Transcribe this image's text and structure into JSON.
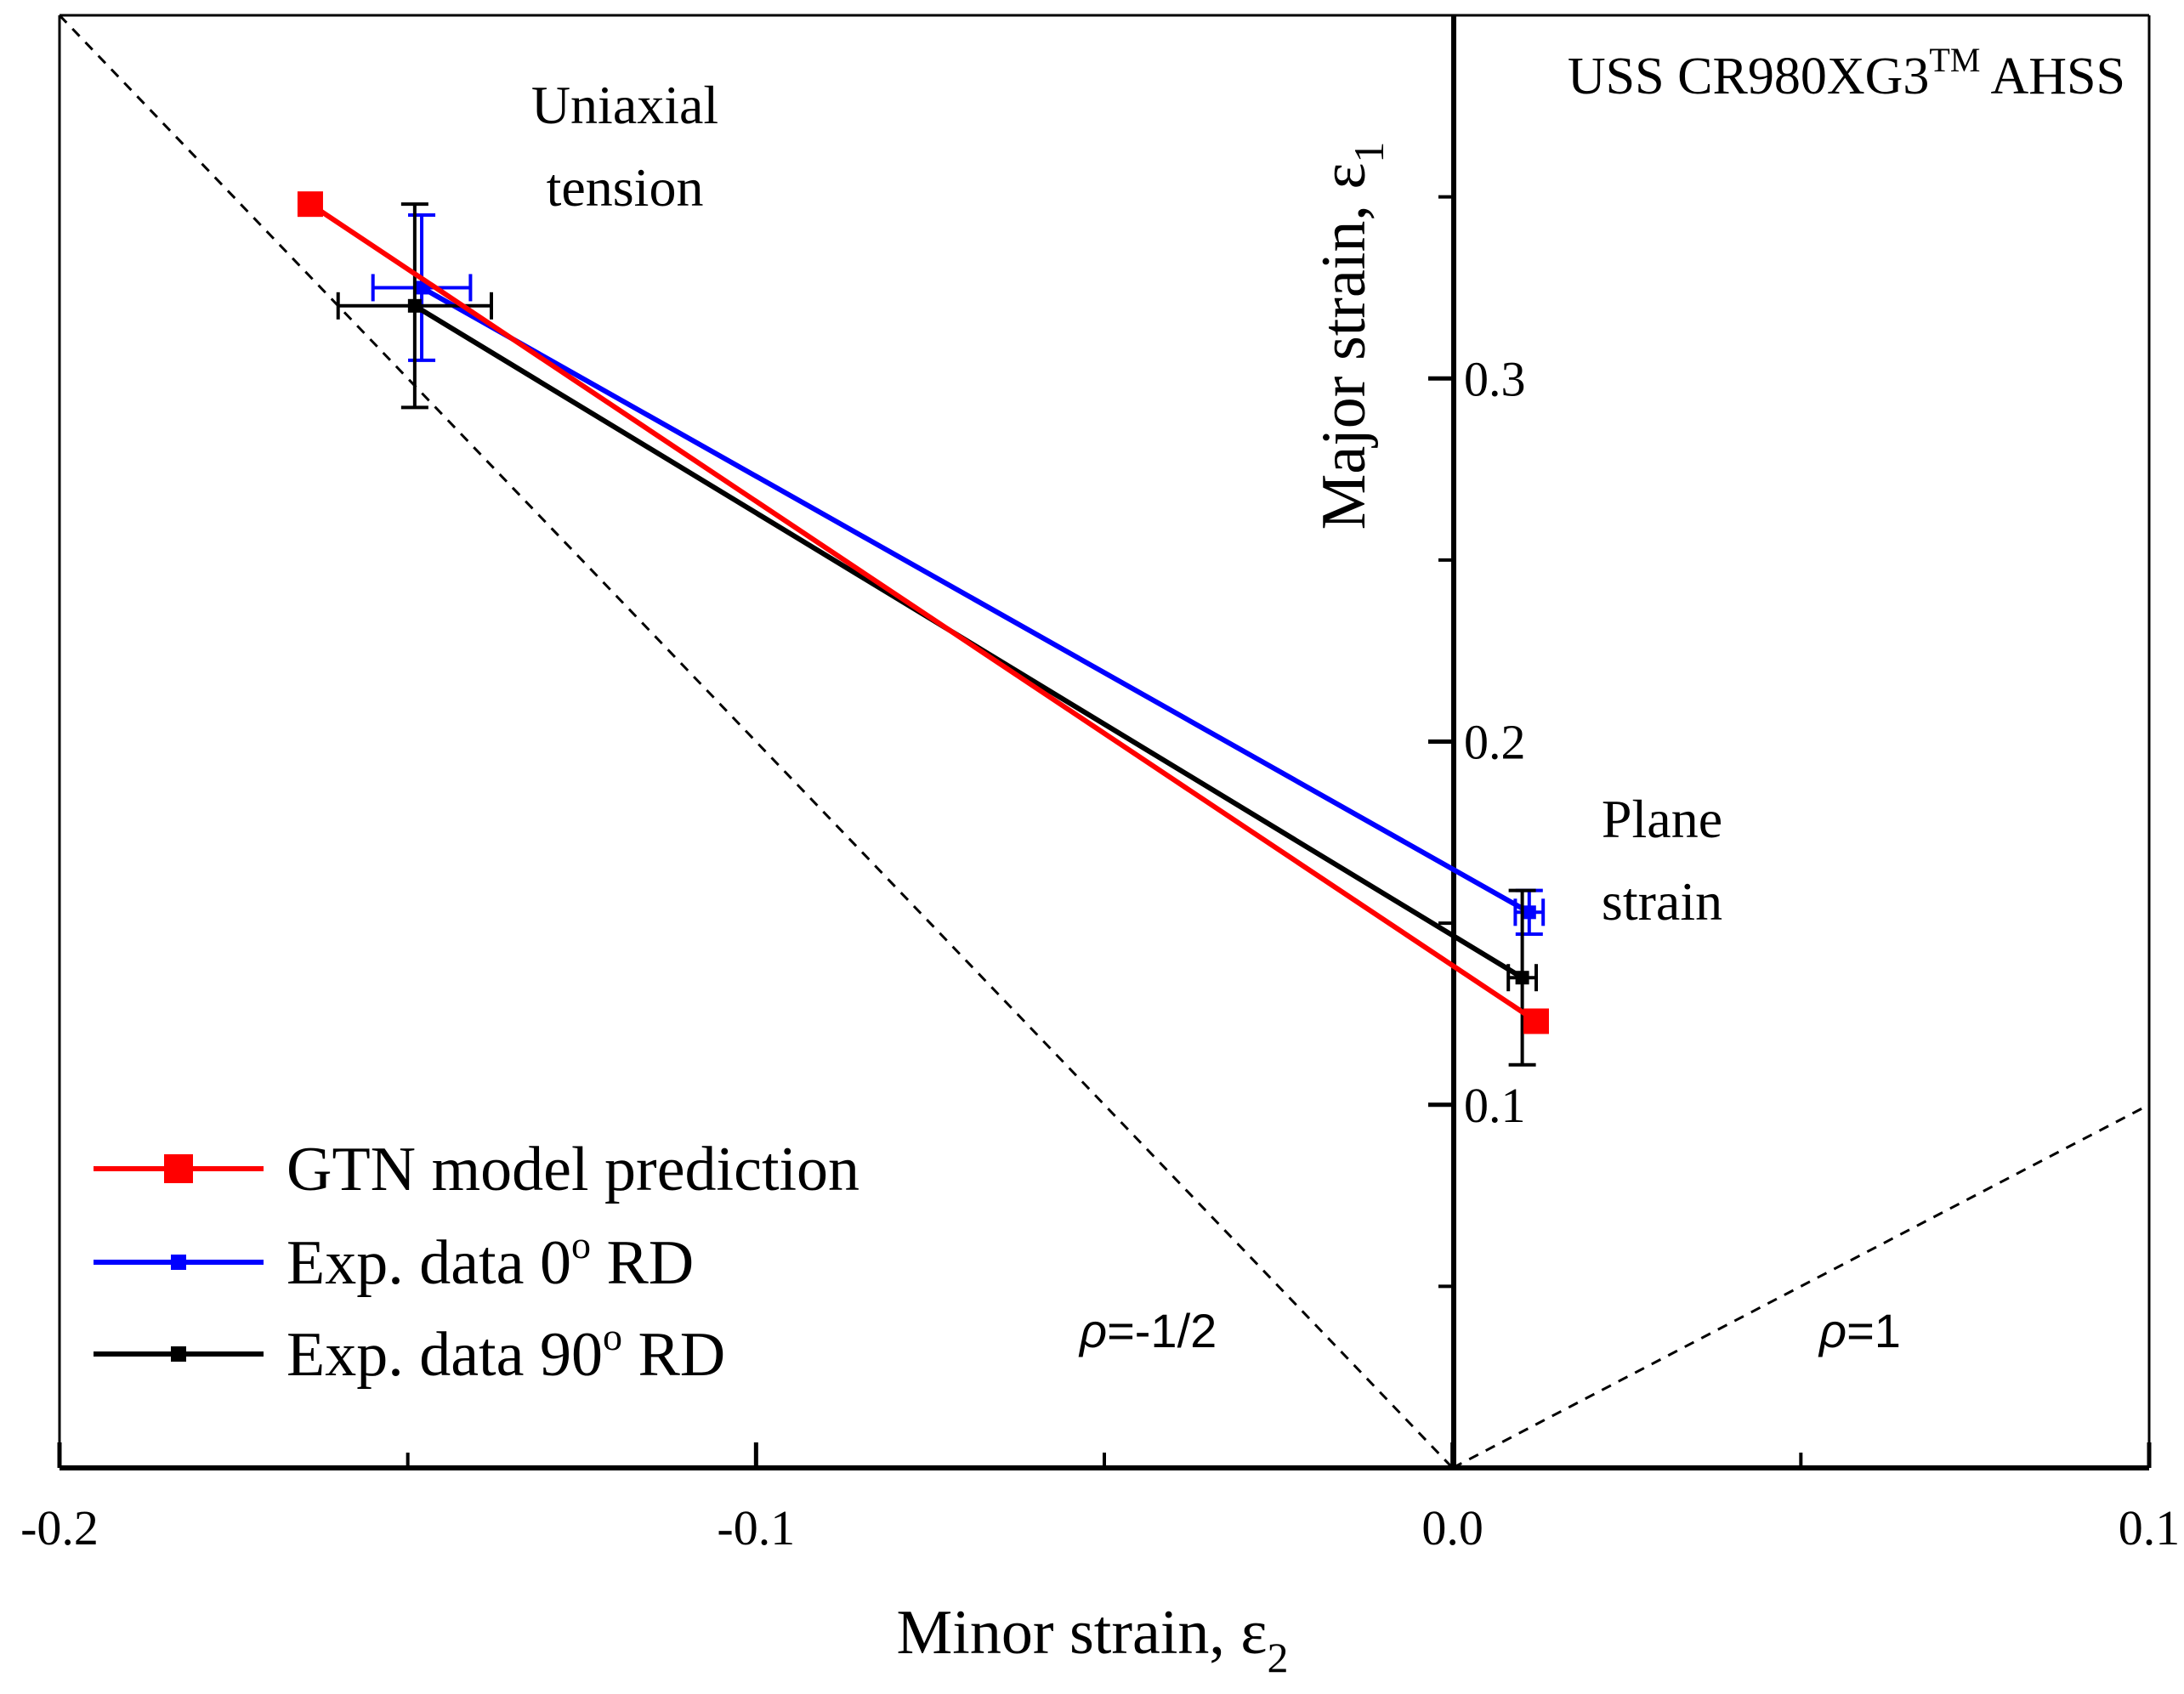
{
  "chart_data": {
    "type": "line",
    "title": "USS CR980XG3™ AHSS",
    "title_main": "USS CR980XG3",
    "title_sup": "TM",
    "title_tail": " AHSS",
    "xlabel": "Minor strain, ε",
    "xlabel_sub": "2",
    "ylabel": "Major strain, ε",
    "ylabel_sub": "1",
    "xlim": [
      -0.2,
      0.1
    ],
    "ylim": [
      0.0,
      0.4
    ],
    "x_ticks": [
      -0.2,
      -0.1,
      0.0,
      0.1
    ],
    "x_tick_labels": [
      "-0.2",
      "-0.1",
      "0.0",
      "0.1"
    ],
    "x_minor_ticks": [
      -0.15,
      -0.05,
      0.05
    ],
    "y_ticks": [
      0.1,
      0.2,
      0.3
    ],
    "y_tick_labels": [
      "0.1",
      "0.2",
      "0.3"
    ],
    "y_minor_ticks": [
      0.05,
      0.15,
      0.25,
      0.35
    ],
    "grid": false,
    "legend_position": "bottom-left",
    "series": [
      {
        "name": "GTN model prediction",
        "legend_label": "GTN model prediction",
        "color": "#ff0000",
        "marker": "square-large",
        "points": [
          {
            "x": -0.164,
            "y": 0.348
          },
          {
            "x": 0.012,
            "y": 0.123
          }
        ]
      },
      {
        "name": "Exp. data 0° RD",
        "legend_main": "Exp. data 0",
        "legend_sup": "o",
        "legend_tail": " RD",
        "color": "#0000ff",
        "marker": "square-small",
        "points": [
          {
            "x": -0.148,
            "y": 0.325,
            "xerr": 0.007,
            "yerr": 0.02
          },
          {
            "x": 0.011,
            "y": 0.153,
            "xerr": 0.002,
            "yerr": 0.006
          }
        ]
      },
      {
        "name": "Exp. data 90° RD",
        "legend_main": "Exp. data 90",
        "legend_sup": "o",
        "legend_tail": " RD",
        "color": "#000000",
        "marker": "square-small",
        "points": [
          {
            "x": -0.149,
            "y": 0.32,
            "xerr": 0.011,
            "yerr": 0.028
          },
          {
            "x": 0.01,
            "y": 0.135,
            "xerr": 0.002,
            "yerr": 0.024
          }
        ]
      }
    ],
    "reference_lines": [
      {
        "name": "rho = -1/2",
        "label_rho": "ρ",
        "label_value": "=-1/2",
        "from": {
          "x": -0.2,
          "y": 0.4
        },
        "to": {
          "x": 0.0,
          "y": 0.0
        }
      },
      {
        "name": "rho = 1",
        "label_rho": "ρ",
        "label_value": "=1",
        "from": {
          "x": 0.0,
          "y": 0.0
        },
        "to": {
          "x": 0.1,
          "y": 0.1
        }
      }
    ],
    "annotations": {
      "uniaxial_line1": "Uniaxial",
      "uniaxial_line2": "tension",
      "plane_line1": "Plane",
      "plane_line2": "strain"
    }
  }
}
